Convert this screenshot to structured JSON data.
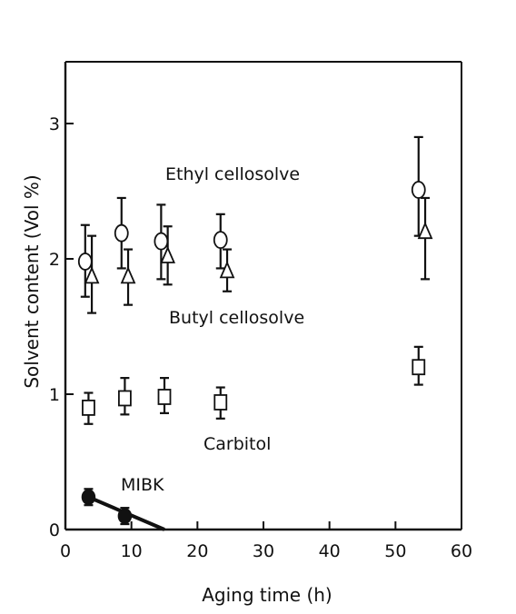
{
  "chart_data": {
    "type": "scatter",
    "xlabel": "Aging time (h)",
    "ylabel": "Solvent content (Vol %)",
    "xlim": [
      0,
      60
    ],
    "ylim": [
      0,
      3.5
    ],
    "x_ticks": [
      0,
      10,
      20,
      30,
      40,
      50,
      60
    ],
    "y_ticks": [
      0,
      1,
      2,
      3
    ],
    "x_tick_labels": [
      "0",
      "10",
      "20",
      "30",
      "40",
      "50",
      "60"
    ],
    "y_tick_labels": [
      "0",
      "1",
      "2",
      "3"
    ],
    "grid": false,
    "legend": "none",
    "series": [
      {
        "name": "Ethyl cellosolve",
        "marker": "open-circle",
        "points": [
          {
            "x": 3.0,
            "y": 1.98,
            "err_low": 1.72,
            "err_high": 2.25
          },
          {
            "x": 8.5,
            "y": 2.19,
            "err_low": 1.93,
            "err_high": 2.45
          },
          {
            "x": 14.5,
            "y": 2.13,
            "err_low": 1.85,
            "err_high": 2.4
          },
          {
            "x": 23.5,
            "y": 2.14,
            "err_low": 1.93,
            "err_high": 2.33
          },
          {
            "x": 53.5,
            "y": 2.51,
            "err_low": 2.17,
            "err_high": 2.9
          }
        ]
      },
      {
        "name": "Butyl cellosolve",
        "marker": "open-triangle",
        "points": [
          {
            "x": 4.0,
            "y": 1.87,
            "err_low": 1.6,
            "err_high": 2.17
          },
          {
            "x": 9.5,
            "y": 1.87,
            "err_low": 1.66,
            "err_high": 2.07
          },
          {
            "x": 15.5,
            "y": 2.02,
            "err_low": 1.81,
            "err_high": 2.24
          },
          {
            "x": 24.5,
            "y": 1.91,
            "err_low": 1.76,
            "err_high": 2.07
          },
          {
            "x": 54.5,
            "y": 2.2,
            "err_low": 1.85,
            "err_high": 2.45
          }
        ]
      },
      {
        "name": "Carbitol",
        "marker": "open-square",
        "points": [
          {
            "x": 3.5,
            "y": 0.9,
            "err_low": 0.78,
            "err_high": 1.01
          },
          {
            "x": 9.0,
            "y": 0.97,
            "err_low": 0.85,
            "err_high": 1.12
          },
          {
            "x": 15.0,
            "y": 0.98,
            "err_low": 0.86,
            "err_high": 1.12
          },
          {
            "x": 23.5,
            "y": 0.94,
            "err_low": 0.82,
            "err_high": 1.05
          },
          {
            "x": 53.5,
            "y": 1.2,
            "err_low": 1.07,
            "err_high": 1.35
          }
        ]
      },
      {
        "name": "MIBK",
        "marker": "filled-circle",
        "points": [
          {
            "x": 3.5,
            "y": 0.24,
            "err_low": 0.18,
            "err_high": 0.3
          },
          {
            "x": 9.0,
            "y": 0.1,
            "err_low": 0.04,
            "err_high": 0.16
          }
        ],
        "trend_line": [
          {
            "x": 3.5,
            "y": 0.24
          },
          {
            "x": 15.0,
            "y": 0.0
          }
        ]
      }
    ]
  }
}
